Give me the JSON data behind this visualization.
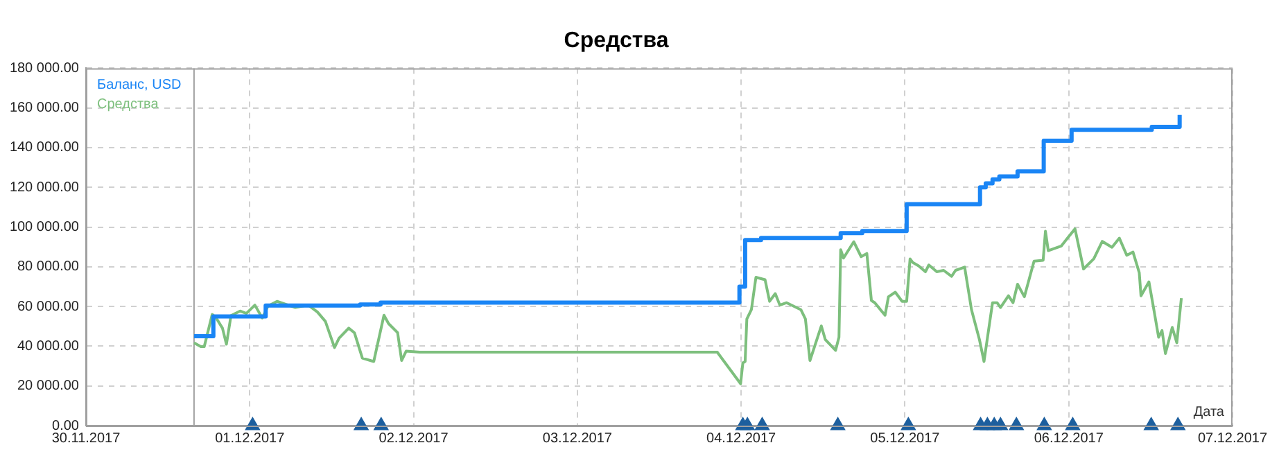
{
  "chart_data": {
    "type": "line",
    "title": "Средства",
    "xlabel": "Дата",
    "legend": "top left",
    "grid": true,
    "marker": "none",
    "xlim": [
      "2017-11-30T00:00",
      "2017-12-07T00:00"
    ],
    "xticks": [
      {
        "value": "2017-11-30T00:00",
        "label": "30.11.2017"
      },
      {
        "value": "2017-12-01T00:00",
        "label": "01.12.2017"
      },
      {
        "value": "2017-12-02T00:00",
        "label": "02.12.2017"
      },
      {
        "value": "2017-12-03T00:00",
        "label": "03.12.2017"
      },
      {
        "value": "2017-12-04T00:00",
        "label": "04.12.2017"
      },
      {
        "value": "2017-12-05T00:00",
        "label": "05.12.2017"
      },
      {
        "value": "2017-12-06T00:00",
        "label": "06.12.2017"
      },
      {
        "value": "2017-12-07T00:00",
        "label": "07.12.2017"
      }
    ],
    "ylim": [
      0,
      180000
    ],
    "yticks": [
      {
        "value": 0,
        "label": "0.00"
      },
      {
        "value": 20000,
        "label": "20 000.00"
      },
      {
        "value": 40000,
        "label": "40 000.00"
      },
      {
        "value": 60000,
        "label": "60 000.00"
      },
      {
        "value": 80000,
        "label": "80 000.00"
      },
      {
        "value": 100000,
        "label": "100 000.00"
      },
      {
        "value": 120000,
        "label": "120 000.00"
      },
      {
        "value": 140000,
        "label": "140 000.00"
      },
      {
        "value": 160000,
        "label": "160 000.00"
      },
      {
        "value": 180000,
        "label": "180 000.00"
      }
    ],
    "ref_lines": [
      {
        "axis": "x",
        "value": "2017-11-30T15:50",
        "color": "#a0a0a0"
      }
    ],
    "series": [
      {
        "name": "Баланс, USD",
        "type": "step",
        "color": "#1a85f5",
        "x": [
          "2017-11-30T15:50",
          "2017-11-30T18:40",
          "2017-12-01T02:20",
          "2017-12-01T16:10",
          "2017-12-01T19:10",
          "2017-12-03T23:45",
          "2017-12-04T00:35",
          "2017-12-04T02:55",
          "2017-12-04T14:35",
          "2017-12-04T17:45",
          "2017-12-05T00:15",
          "2017-12-05T11:00",
          "2017-12-05T11:50",
          "2017-12-05T12:50",
          "2017-12-05T13:50",
          "2017-12-05T16:30",
          "2017-12-05T20:20",
          "2017-12-06T00:25",
          "2017-12-06T12:10",
          "2017-12-06T16:15"
        ],
        "values": [
          45000,
          55000,
          60500,
          61000,
          62000,
          70000,
          93500,
          94500,
          97000,
          98000,
          111500,
          120000,
          122000,
          124000,
          125500,
          128000,
          143500,
          149000,
          150500,
          156500
        ]
      },
      {
        "name": "Средства",
        "type": "line",
        "color": "#7dbf7d",
        "x": [
          "2017-11-30T15:50",
          "2017-11-30T16:50",
          "2017-11-30T17:20",
          "2017-11-30T18:30",
          "2017-11-30T19:05",
          "2017-11-30T20:00",
          "2017-11-30T20:35",
          "2017-11-30T21:15",
          "2017-11-30T22:35",
          "2017-11-30T23:30",
          "2017-12-01T00:45",
          "2017-12-01T01:50",
          "2017-12-01T02:40",
          "2017-12-01T04:00",
          "2017-12-01T06:40",
          "2017-12-01T08:35",
          "2017-12-01T09:55",
          "2017-12-01T11:05",
          "2017-12-01T12:25",
          "2017-12-01T13:05",
          "2017-12-01T14:30",
          "2017-12-01T15:20",
          "2017-12-01T16:30",
          "2017-12-01T18:10",
          "2017-12-01T19:40",
          "2017-12-01T20:20",
          "2017-12-01T21:40",
          "2017-12-01T22:15",
          "2017-12-01T22:55",
          "2017-12-02T00:55",
          "2017-12-03T20:30",
          "2017-12-03T23:55",
          "2017-12-04T00:15",
          "2017-12-04T00:35",
          "2017-12-04T00:50",
          "2017-12-04T01:30",
          "2017-12-04T02:10",
          "2017-12-04T03:30",
          "2017-12-04T04:10",
          "2017-12-04T05:00",
          "2017-12-04T05:40",
          "2017-12-04T06:40",
          "2017-12-04T08:45",
          "2017-12-04T09:25",
          "2017-12-04T10:05",
          "2017-12-04T11:45",
          "2017-12-04T12:20",
          "2017-12-04T13:50",
          "2017-12-04T14:20",
          "2017-12-04T14:35",
          "2017-12-04T15:00",
          "2017-12-04T16:30",
          "2017-12-04T17:35",
          "2017-12-04T18:25",
          "2017-12-04T19:05",
          "2017-12-04T19:35",
          "2017-12-04T21:05",
          "2017-12-04T21:35",
          "2017-12-04T22:35",
          "2017-12-04T23:35",
          "2017-12-05T00:15",
          "2017-12-05T00:45",
          "2017-12-05T01:10",
          "2017-12-05T02:00",
          "2017-12-05T03:00",
          "2017-12-05T03:30",
          "2017-12-05T04:40",
          "2017-12-05T05:40",
          "2017-12-05T06:50",
          "2017-12-05T07:25",
          "2017-12-05T08:45",
          "2017-12-05T09:45",
          "2017-12-05T10:55",
          "2017-12-05T11:35",
          "2017-12-05T12:50",
          "2017-12-05T13:30",
          "2017-12-05T14:00",
          "2017-12-05T15:10",
          "2017-12-05T15:50",
          "2017-12-05T16:30",
          "2017-12-05T17:30",
          "2017-12-05T18:55",
          "2017-12-05T20:15",
          "2017-12-05T20:35",
          "2017-12-05T21:00",
          "2017-12-05T22:55",
          "2017-12-05T23:55",
          "2017-12-06T00:55",
          "2017-12-06T02:10",
          "2017-12-06T03:40",
          "2017-12-06T04:55",
          "2017-12-06T06:20",
          "2017-12-06T07:25",
          "2017-12-06T08:30",
          "2017-12-06T09:25",
          "2017-12-06T10:20",
          "2017-12-06T10:35",
          "2017-12-06T11:45",
          "2017-12-06T12:25",
          "2017-12-06T13:10",
          "2017-12-06T13:40",
          "2017-12-06T14:10",
          "2017-12-06T15:10",
          "2017-12-06T15:50",
          "2017-12-06T16:30"
        ],
        "values": [
          41700,
          39800,
          39800,
          56000,
          54200,
          49100,
          41000,
          55400,
          57700,
          56500,
          60700,
          54200,
          60200,
          62600,
          59500,
          60700,
          57200,
          52500,
          39300,
          44000,
          49100,
          46800,
          34000,
          32300,
          55600,
          51400,
          46800,
          32800,
          37500,
          37000,
          37000,
          21100,
          31600,
          32300,
          53700,
          58400,
          74700,
          73500,
          62600,
          66500,
          60700,
          61900,
          58400,
          53700,
          32800,
          50200,
          43300,
          37900,
          44500,
          88600,
          84400,
          92600,
          85100,
          86700,
          63000,
          61900,
          55600,
          64900,
          67200,
          62600,
          62600,
          84000,
          82100,
          80500,
          77500,
          80900,
          77500,
          78200,
          75200,
          78200,
          79800,
          58400,
          43300,
          32300,
          61900,
          61900,
          59500,
          65400,
          61900,
          71200,
          64900,
          82800,
          83300,
          97900,
          88100,
          90500,
          94900,
          99100,
          78900,
          84000,
          92800,
          89800,
          94400,
          85800,
          87400,
          77000,
          65400,
          72400,
          59500,
          44500,
          47900,
          36300,
          49500,
          41700,
          64200
        ]
      },
      {
        "type": "scatter",
        "marker": "triangle",
        "color": "#1d5f9e",
        "x": [
          "2017-12-01T00:25",
          "2017-12-01T16:20",
          "2017-12-01T19:15",
          "2017-12-04T00:15",
          "2017-12-04T00:55",
          "2017-12-04T03:05",
          "2017-12-04T14:10",
          "2017-12-05T00:30",
          "2017-12-05T11:05",
          "2017-12-05T12:05",
          "2017-12-05T13:05",
          "2017-12-05T14:00",
          "2017-12-05T16:20",
          "2017-12-05T20:25",
          "2017-12-06T00:35",
          "2017-12-06T12:05",
          "2017-12-06T16:00"
        ],
        "values": [
          0,
          0,
          0,
          0,
          0,
          0,
          0,
          0,
          0,
          0,
          0,
          0,
          0,
          0,
          0,
          0,
          0
        ]
      }
    ]
  }
}
